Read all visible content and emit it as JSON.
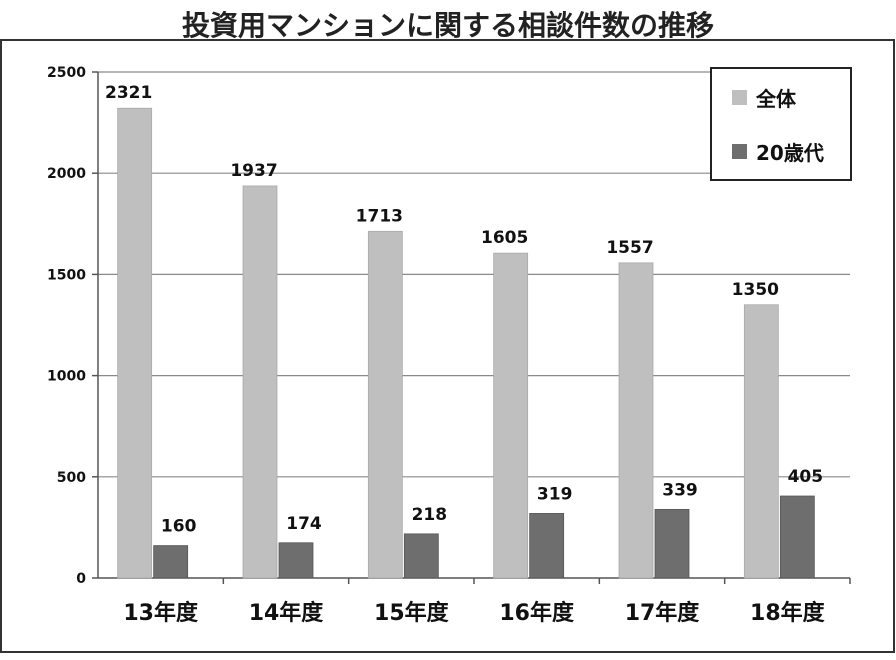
{
  "chart_data": {
    "type": "bar",
    "title": "投資用マンションに関する相談件数の推移",
    "categories": [
      "13年度",
      "14年度",
      "15年度",
      "16年度",
      "17年度",
      "18年度"
    ],
    "series": [
      {
        "name": "全体",
        "values": [
          2321,
          1937,
          1713,
          1605,
          1557,
          1350
        ],
        "color": "#bfbfbf"
      },
      {
        "name": "20歳代",
        "values": [
          160,
          174,
          218,
          319,
          339,
          405
        ],
        "color": "#6e6e6e"
      }
    ],
    "yticks": [
      "0",
      "500",
      "1000",
      "1500",
      "2000",
      "2500"
    ],
    "ylim": [
      0,
      2500
    ],
    "grid": true,
    "legend": "top-right"
  }
}
